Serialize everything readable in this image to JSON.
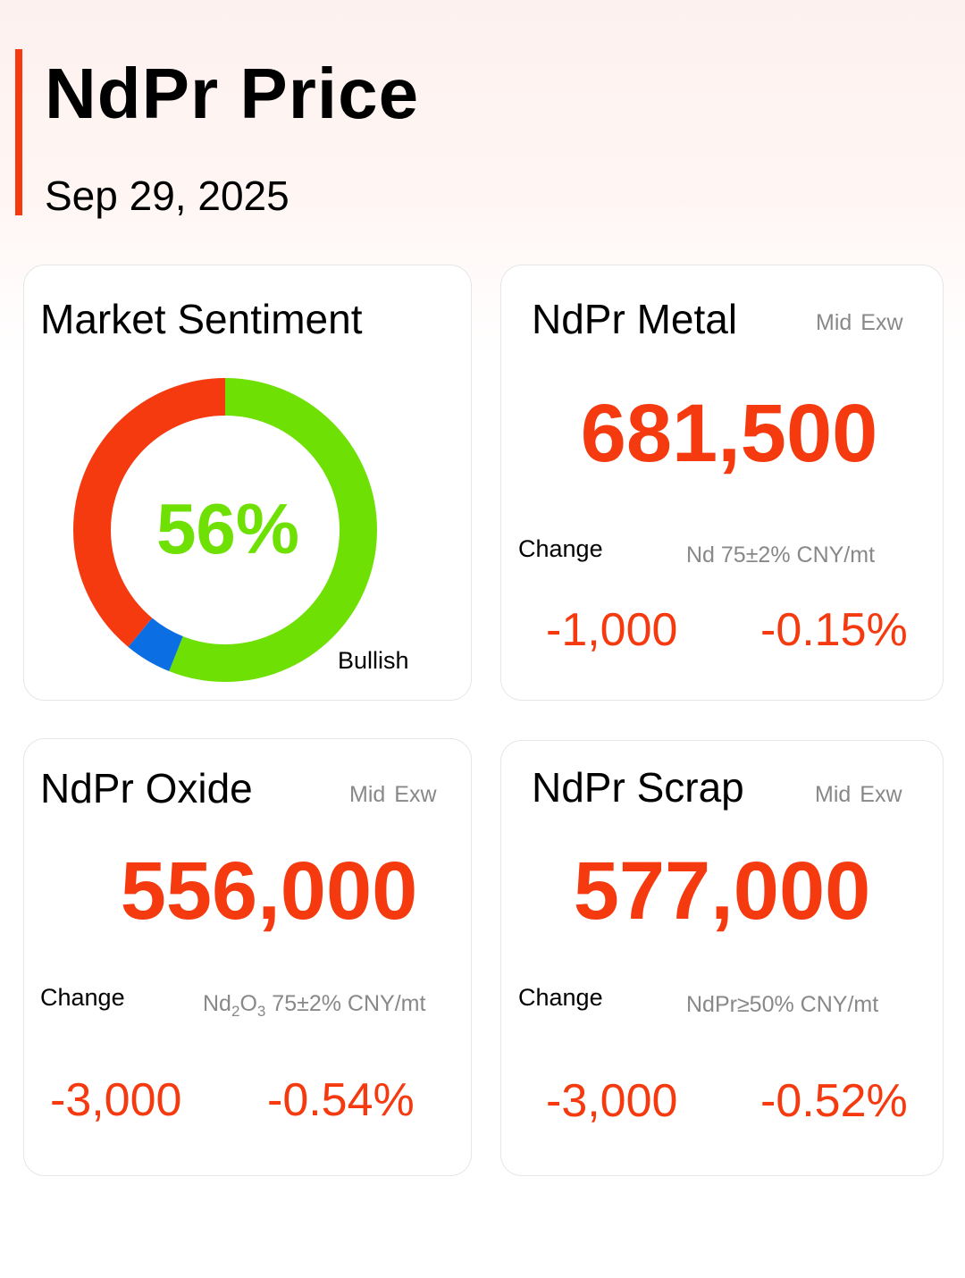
{
  "header": {
    "title": "NdPr Price",
    "date": "Sep 29, 2025"
  },
  "colors": {
    "accent": "#f53a10",
    "bullish": "#6ee004",
    "bearish": "#f53a10",
    "neutral": "#0b6fe3"
  },
  "sentiment": {
    "title": "Market Sentiment",
    "value": "56%",
    "label": "Bullish",
    "segments": [
      {
        "name": "bullish",
        "fraction": 0.56,
        "color": "#6ee004"
      },
      {
        "name": "neutral",
        "fraction": 0.05,
        "color": "#0b6fe3"
      },
      {
        "name": "bearish",
        "fraction": 0.39,
        "color": "#f53a10"
      }
    ]
  },
  "metal": {
    "title": "NdPr Metal",
    "mid": "Mid",
    "exw": "Exw",
    "price": "681,500",
    "change_label": "Change",
    "spec": "Nd 75±2% CNY/mt",
    "change_abs": "-1,000",
    "change_pct": "-0.15%"
  },
  "oxide": {
    "title": "NdPr Oxide",
    "mid": "Mid",
    "exw": "Exw",
    "price": "556,000",
    "change_label": "Change",
    "spec_a": "Nd",
    "spec_sub1": "2",
    "spec_b": "O",
    "spec_sub2": "3",
    "spec_c": " 75±2% CNY/mt",
    "change_abs": "-3,000",
    "change_pct": "-0.54%"
  },
  "scrap": {
    "title": "NdPr Scrap",
    "mid": "Mid",
    "exw": "Exw",
    "price": "577,000",
    "change_label": "Change",
    "spec": "NdPr≥50% CNY/mt",
    "change_abs": "-3,000",
    "change_pct": "-0.52%"
  }
}
